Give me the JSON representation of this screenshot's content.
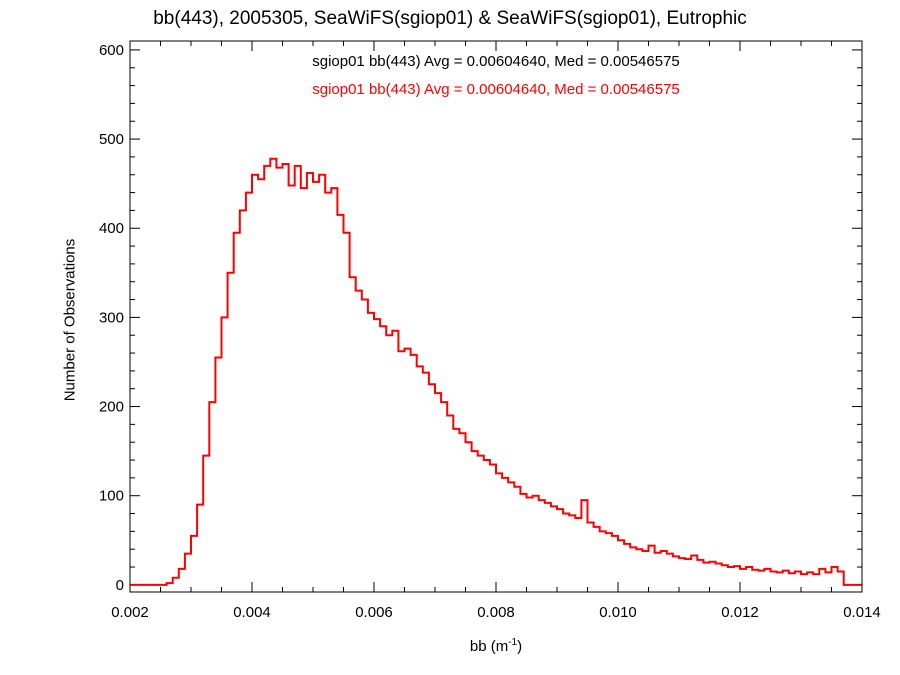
{
  "chart_data": {
    "type": "histogram",
    "title": "bb(443), 2005305, SeaWiFS(sgiop01) & SeaWiFS(sgiop01), Eutrophic",
    "xlabel_text": "bb (m",
    "xlabel_sup": "-1",
    "xlabel_close": ")",
    "ylabel": "Number of Observations",
    "xlim": [
      0.002,
      0.014
    ],
    "ylim": [
      -8,
      610
    ],
    "xticks": [
      0.002,
      0.004,
      0.006,
      0.008,
      0.01,
      0.012,
      0.014
    ],
    "xtick_labels": [
      "0.002",
      "0.004",
      "0.006",
      "0.008",
      "0.010",
      "0.012",
      "0.014"
    ],
    "yticks": [
      0,
      100,
      200,
      300,
      400,
      500,
      600
    ],
    "ytick_labels": [
      "0",
      "100",
      "200",
      "300",
      "400",
      "500",
      "600"
    ],
    "annotations": [
      {
        "text": "sgiop01 bb(443) Avg = 0.00604640, Med = 0.00546575",
        "color": "#000000"
      },
      {
        "text": "sgiop01 bb(443) Avg = 0.00604640, Med = 0.00546575",
        "color": "#ff0000"
      }
    ],
    "series": [
      {
        "color": "#ff0000",
        "points": [
          [
            0.002,
            0
          ],
          [
            0.0026,
            2
          ],
          [
            0.0027,
            8
          ],
          [
            0.0028,
            18
          ],
          [
            0.0029,
            35
          ],
          [
            0.003,
            55
          ],
          [
            0.0031,
            90
          ],
          [
            0.0032,
            145
          ],
          [
            0.0033,
            205
          ],
          [
            0.0034,
            255
          ],
          [
            0.0035,
            300
          ],
          [
            0.0036,
            350
          ],
          [
            0.0037,
            395
          ],
          [
            0.0038,
            420
          ],
          [
            0.0039,
            440
          ],
          [
            0.004,
            460
          ],
          [
            0.0041,
            455
          ],
          [
            0.0042,
            470
          ],
          [
            0.0043,
            478
          ],
          [
            0.0044,
            468
          ],
          [
            0.0045,
            472
          ],
          [
            0.0046,
            448
          ],
          [
            0.0047,
            470
          ],
          [
            0.0048,
            445
          ],
          [
            0.0049,
            462
          ],
          [
            0.005,
            452
          ],
          [
            0.0051,
            460
          ],
          [
            0.0052,
            440
          ],
          [
            0.0053,
            445
          ],
          [
            0.0054,
            415
          ],
          [
            0.0055,
            395
          ],
          [
            0.0056,
            345
          ],
          [
            0.0057,
            330
          ],
          [
            0.0058,
            320
          ],
          [
            0.0059,
            305
          ],
          [
            0.006,
            298
          ],
          [
            0.0061,
            290
          ],
          [
            0.0062,
            280
          ],
          [
            0.0063,
            285
          ],
          [
            0.0064,
            262
          ],
          [
            0.0065,
            265
          ],
          [
            0.0066,
            258
          ],
          [
            0.0067,
            245
          ],
          [
            0.0068,
            238
          ],
          [
            0.0069,
            225
          ],
          [
            0.007,
            215
          ],
          [
            0.0071,
            205
          ],
          [
            0.0072,
            190
          ],
          [
            0.0073,
            175
          ],
          [
            0.0074,
            170
          ],
          [
            0.0075,
            160
          ],
          [
            0.0076,
            150
          ],
          [
            0.0077,
            145
          ],
          [
            0.0078,
            140
          ],
          [
            0.0079,
            135
          ],
          [
            0.008,
            125
          ],
          [
            0.0081,
            120
          ],
          [
            0.0082,
            115
          ],
          [
            0.0083,
            110
          ],
          [
            0.0084,
            102
          ],
          [
            0.0085,
            98
          ],
          [
            0.0086,
            100
          ],
          [
            0.0087,
            95
          ],
          [
            0.0088,
            92
          ],
          [
            0.0089,
            88
          ],
          [
            0.009,
            85
          ],
          [
            0.0091,
            80
          ],
          [
            0.0092,
            78
          ],
          [
            0.0093,
            75
          ],
          [
            0.0094,
            95
          ],
          [
            0.0095,
            70
          ],
          [
            0.0096,
            65
          ],
          [
            0.0097,
            60
          ],
          [
            0.0098,
            58
          ],
          [
            0.0099,
            55
          ],
          [
            0.01,
            50
          ],
          [
            0.0101,
            46
          ],
          [
            0.0102,
            42
          ],
          [
            0.0103,
            40
          ],
          [
            0.0104,
            38
          ],
          [
            0.0105,
            44
          ],
          [
            0.0106,
            36
          ],
          [
            0.0107,
            38
          ],
          [
            0.0108,
            35
          ],
          [
            0.0109,
            32
          ],
          [
            0.011,
            30
          ],
          [
            0.0111,
            29
          ],
          [
            0.0112,
            33
          ],
          [
            0.0113,
            28
          ],
          [
            0.0114,
            25
          ],
          [
            0.0115,
            26
          ],
          [
            0.0116,
            24
          ],
          [
            0.0117,
            22
          ],
          [
            0.0118,
            20
          ],
          [
            0.0119,
            21
          ],
          [
            0.012,
            18
          ],
          [
            0.0121,
            20
          ],
          [
            0.0122,
            17
          ],
          [
            0.0123,
            16
          ],
          [
            0.0124,
            18
          ],
          [
            0.0125,
            15
          ],
          [
            0.0126,
            14
          ],
          [
            0.0127,
            16
          ],
          [
            0.0128,
            13
          ],
          [
            0.0129,
            15
          ],
          [
            0.013,
            12
          ],
          [
            0.0131,
            14
          ],
          [
            0.0132,
            12
          ],
          [
            0.0133,
            18
          ],
          [
            0.0134,
            14
          ],
          [
            0.0135,
            20
          ],
          [
            0.0136,
            15
          ],
          [
            0.0137,
            0
          ],
          [
            0.014,
            0
          ]
        ]
      }
    ]
  }
}
